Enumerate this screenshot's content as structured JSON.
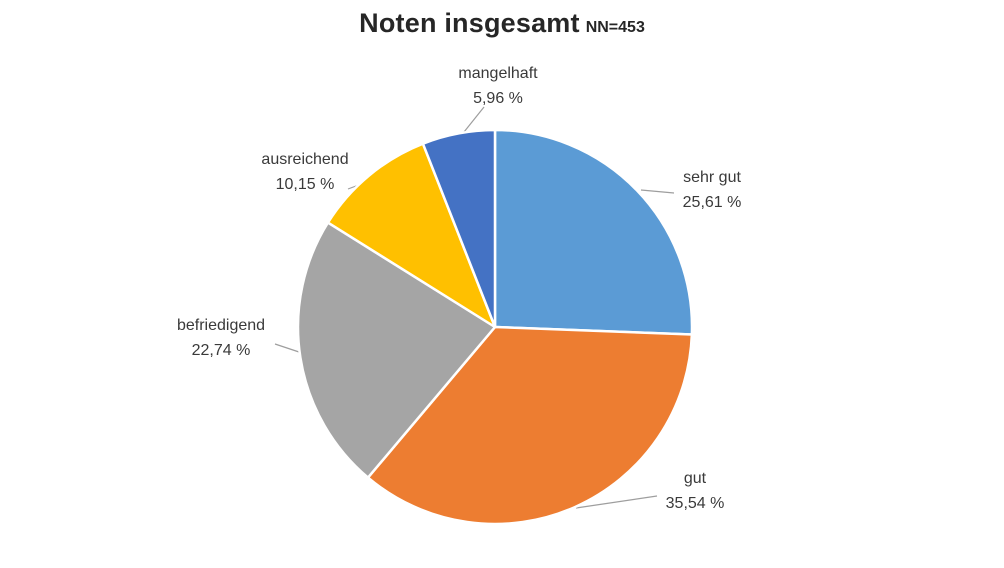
{
  "title": {
    "main": "Noten insgesamt",
    "suffix": "NN=453"
  },
  "chart_data": {
    "type": "pie",
    "title": "Noten insgesamt",
    "n_label": "NN=453",
    "start_angle_deg": 0,
    "direction": "clockwise",
    "legend": "none",
    "data_labels": "outside-with-leader-lines",
    "leader_line_color": "#9e9e9e",
    "slice_border_color": "#ffffff",
    "slices": [
      {
        "label": "sehr gut",
        "value": 25.61,
        "value_display": "25,61 %",
        "color": "#5B9BD5"
      },
      {
        "label": "gut",
        "value": 35.54,
        "value_display": "35,54 %",
        "color": "#ED7D31"
      },
      {
        "label": "befriedigend",
        "value": 22.74,
        "value_display": "22,74 %",
        "color": "#A5A5A5"
      },
      {
        "label": "ausreichend",
        "value": 10.15,
        "value_display": "10,15 %",
        "color": "#FFC000"
      },
      {
        "label": "mangelhaft",
        "value": 5.96,
        "value_display": "5,96 %",
        "color": "#4472C4"
      }
    ]
  }
}
